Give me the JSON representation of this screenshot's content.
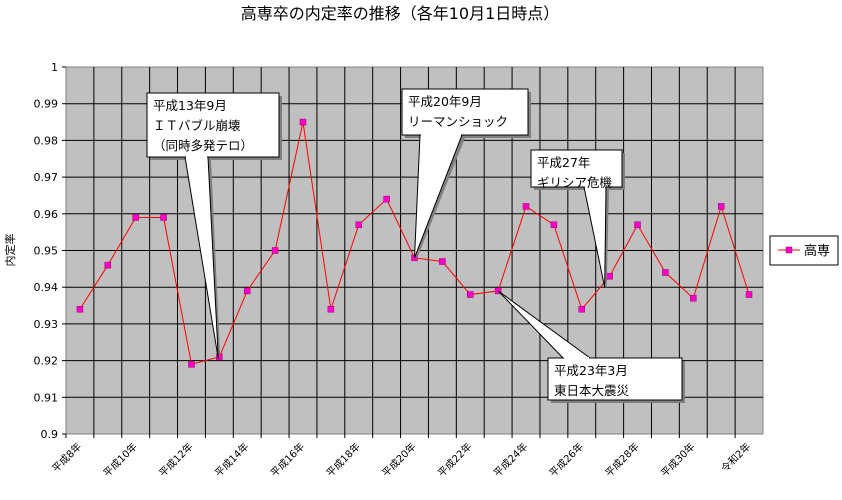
{
  "chart_data": {
    "type": "line",
    "title": "高専卒の内定率の推移（各年10月1日時点）",
    "ylabel": "内定率",
    "xlabel": "",
    "ylim": [
      0.9,
      1.0
    ],
    "y_ticks": [
      "0.9",
      "0.91",
      "0.92",
      "0.93",
      "0.94",
      "0.95",
      "0.96",
      "0.97",
      "0.98",
      "0.99",
      "1"
    ],
    "x": [
      "平成8年",
      "平成9年",
      "平成10年",
      "平成11年",
      "平成12年",
      "平成13年",
      "平成14年",
      "平成15年",
      "平成16年",
      "平成17年",
      "平成18年",
      "平成19年",
      "平成20年",
      "平成21年",
      "平成22年",
      "平成23年",
      "平成24年",
      "平成25年",
      "平成26年",
      "平成27年",
      "平成28年",
      "平成29年",
      "平成30年",
      "令和元年",
      "令和2年"
    ],
    "x_tick_labels": [
      "平成8年",
      "平成10年",
      "平成12年",
      "平成14年",
      "平成16年",
      "平成18年",
      "平成20年",
      "平成22年",
      "平成24年",
      "平成26年",
      "平成28年",
      "平成30年",
      "令和2年"
    ],
    "series": [
      {
        "name": "高専",
        "color": "#ff0000",
        "marker_color": "#ff00cc",
        "values": [
          0.934,
          0.946,
          0.959,
          0.959,
          0.919,
          0.921,
          0.939,
          0.95,
          0.985,
          0.934,
          0.957,
          0.964,
          0.948,
          0.947,
          0.938,
          0.939,
          0.962,
          0.957,
          0.934,
          0.943,
          0.957,
          0.944,
          0.937,
          0.962,
          0.938
        ]
      }
    ],
    "legend": {
      "position": "right",
      "label": "高専"
    },
    "grid": true,
    "plot_background": "#c0c0c0",
    "annotations": [
      {
        "lines": [
          "平成13年9月",
          "ＩＴバブル崩壊",
          "（同時多発テロ）"
        ],
        "target_index": 5,
        "target_value": 0.921
      },
      {
        "lines": [
          "平成20年9月",
          "リーマンショック"
        ],
        "target_index": 12,
        "target_value": 0.948
      },
      {
        "lines": [
          "平成27年",
          "ギリシア危機"
        ],
        "target_index": 19,
        "target_value": 0.94
      },
      {
        "lines": [
          "平成23年3月",
          "東日本大震災"
        ],
        "target_index": 15,
        "target_value": 0.939
      }
    ]
  }
}
